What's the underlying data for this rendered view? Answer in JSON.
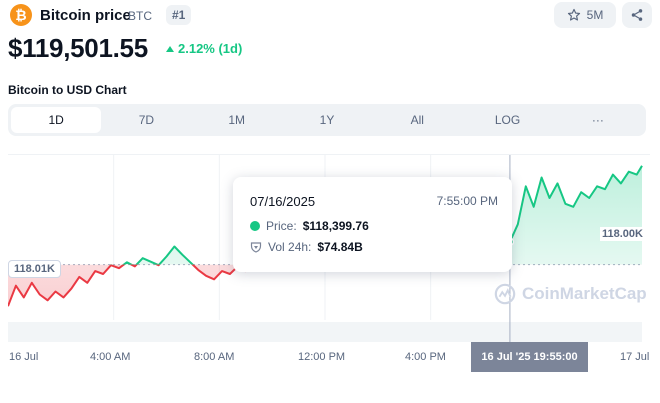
{
  "coin": {
    "logo_glyph": "₿",
    "name": "Bitcoin price",
    "symbol": "BTC",
    "rank": "#1",
    "watchlist_count": "5M",
    "price": "$119,501.55",
    "change": "2.12% (1d)",
    "change_direction": "up"
  },
  "chart": {
    "title": "Bitcoin to USD Chart",
    "tabs": [
      "1D",
      "7D",
      "1M",
      "1Y",
      "All",
      "LOG",
      "···"
    ],
    "active_tab": "1D",
    "open_price_badge": "118.01K",
    "hover_price_badge": "118.00K",
    "watermark": "CoinMarketCap",
    "tooltip": {
      "date": "07/16/2025",
      "time": "7:55:00 PM",
      "price_label": "Price:",
      "price_value": "$118,399.76",
      "vol_label": "Vol 24h:",
      "vol_value": "$74.84B"
    },
    "x_axis_highlight": "16 Jul '25 19:55:00",
    "colors": {
      "up": "#16c784",
      "down": "#ea3943",
      "brand": "#f7931a"
    }
  },
  "chart_data": {
    "type": "line",
    "title": "Bitcoin to USD Chart",
    "xlabel": "",
    "ylabel": "",
    "x_ticks": [
      "16 Jul",
      "4:00 AM",
      "8:00 AM",
      "12:00 PM",
      "4:00 PM",
      "17 Jul"
    ],
    "baseline": 118010,
    "ylim": [
      117200,
      119800
    ],
    "x": [
      0,
      0.3,
      0.6,
      0.9,
      1.2,
      1.5,
      1.8,
      2.1,
      2.4,
      2.7,
      3.0,
      3.3,
      3.6,
      3.9,
      4.2,
      4.5,
      4.8,
      5.1,
      5.4,
      5.7,
      6.0,
      6.3,
      6.6,
      6.9,
      7.2,
      7.5,
      7.8,
      8.1,
      8.4,
      8.7,
      9.0,
      9.3,
      18.4,
      18.7,
      19.0,
      19.3,
      19.6,
      19.9,
      20.2,
      20.5,
      20.8,
      21.1,
      21.4,
      21.7,
      22.0,
      22.3,
      22.6,
      22.9,
      23.2,
      23.5,
      23.8,
      24.0
    ],
    "values": [
      117300,
      117650,
      117450,
      117700,
      117500,
      117400,
      117550,
      117450,
      117600,
      117800,
      117700,
      117900,
      117850,
      118000,
      117950,
      118050,
      117980,
      118120,
      118060,
      118000,
      118150,
      118320,
      118180,
      118050,
      117920,
      117820,
      117760,
      117900,
      117850,
      117980,
      117900,
      118000,
      118350,
      118420,
      118399.76,
      118700,
      119350,
      119000,
      119500,
      119150,
      119400,
      119050,
      119000,
      119250,
      119150,
      119350,
      119300,
      119550,
      119400,
      119600,
      119550,
      119700
    ],
    "hover": {
      "x": 19.0,
      "value": 118399.76
    }
  }
}
